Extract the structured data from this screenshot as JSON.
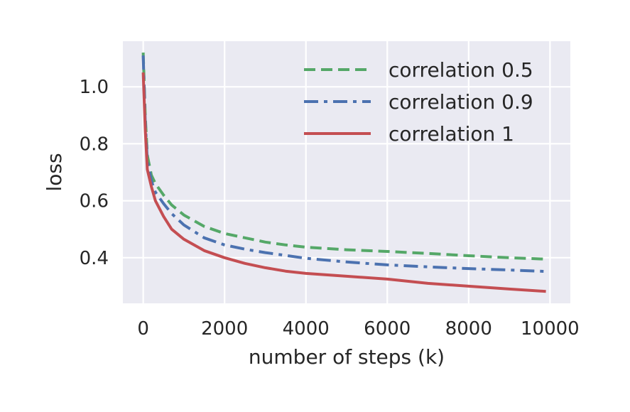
{
  "chart_data": {
    "type": "line",
    "xlabel": "number of steps (k)",
    "ylabel": "loss",
    "xlim": [
      -500,
      10500
    ],
    "ylim": [
      0.24,
      1.16
    ],
    "xticks": [
      0,
      2000,
      4000,
      6000,
      8000,
      10000
    ],
    "xtick_labels": [
      "0",
      "2000",
      "4000",
      "6000",
      "8000",
      "10000"
    ],
    "yticks": [
      0.4,
      0.6,
      0.8,
      1.0
    ],
    "ytick_labels": [
      "0.4",
      "0.6",
      "0.8",
      "1.0"
    ],
    "grid": true,
    "legend_position": "top-right",
    "series": [
      {
        "name": "correlation 0.5",
        "color": "#55a868",
        "style": "dashed",
        "x": [
          0,
          50,
          100,
          200,
          300,
          500,
          700,
          1000,
          1500,
          2000,
          2500,
          3000,
          3500,
          4000,
          5000,
          6000,
          7000,
          8000,
          9000,
          9900
        ],
        "y": [
          1.12,
          0.9,
          0.76,
          0.69,
          0.66,
          0.62,
          0.585,
          0.55,
          0.51,
          0.485,
          0.47,
          0.455,
          0.445,
          0.437,
          0.428,
          0.422,
          0.415,
          0.407,
          0.4,
          0.395
        ]
      },
      {
        "name": "correlation 0.9",
        "color": "#4c72b0",
        "style": "dashdot",
        "x": [
          0,
          50,
          100,
          200,
          300,
          500,
          700,
          1000,
          1500,
          2000,
          2500,
          3000,
          3500,
          4000,
          5000,
          6000,
          7000,
          8000,
          9000,
          9900
        ],
        "y": [
          1.11,
          0.88,
          0.74,
          0.67,
          0.63,
          0.59,
          0.555,
          0.515,
          0.47,
          0.445,
          0.43,
          0.418,
          0.408,
          0.398,
          0.385,
          0.375,
          0.368,
          0.362,
          0.357,
          0.352
        ]
      },
      {
        "name": "correlation 1",
        "color": "#c44e52",
        "style": "solid",
        "x": [
          0,
          50,
          100,
          200,
          300,
          500,
          700,
          1000,
          1500,
          2000,
          2500,
          3000,
          3500,
          4000,
          5000,
          6000,
          7000,
          8000,
          9000,
          9900
        ],
        "y": [
          1.05,
          0.85,
          0.71,
          0.65,
          0.6,
          0.545,
          0.5,
          0.465,
          0.425,
          0.4,
          0.38,
          0.365,
          0.353,
          0.345,
          0.335,
          0.325,
          0.31,
          0.3,
          0.29,
          0.282
        ]
      }
    ]
  }
}
